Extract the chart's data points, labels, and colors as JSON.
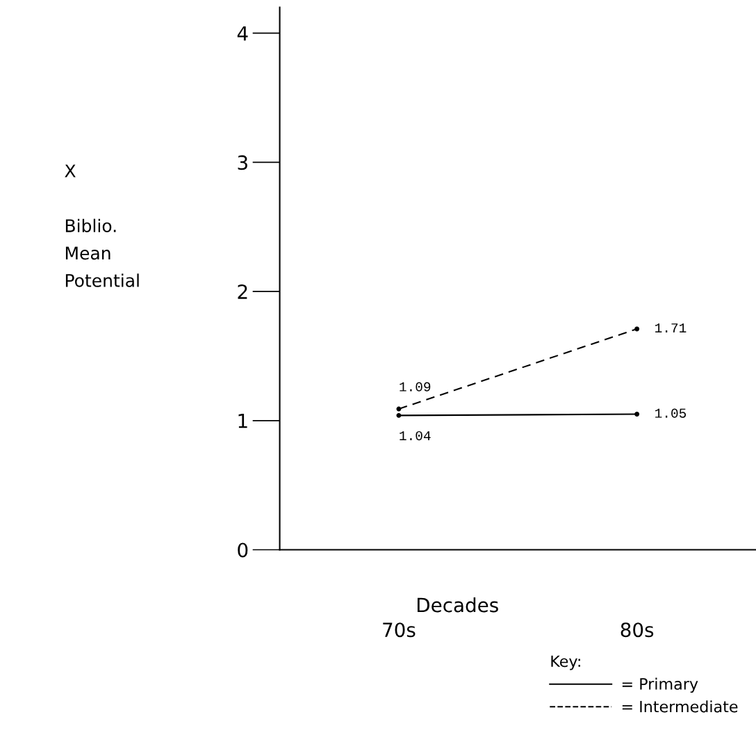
{
  "chart_data": {
    "type": "line",
    "xlabel": "Decades",
    "ylabel": "X\n\nBiblio.\nMean\nPotential",
    "categories": [
      "70s",
      "80s"
    ],
    "series": [
      {
        "name": "= Primary",
        "color": "#000000",
        "values": [
          1.04,
          1.05
        ],
        "line_style": "solid"
      },
      {
        "name": "= Intermediate",
        "color": "#000000",
        "values": [
          1.09,
          1.71
        ],
        "line_style": "dashed"
      }
    ],
    "ylim": [
      0,
      4.2
    ],
    "yticks": [
      0,
      1,
      2,
      3,
      4
    ],
    "grid": false,
    "legend": "bottom right",
    "legend_title": "Key:",
    "marker": "circle",
    "data_labels": true
  }
}
